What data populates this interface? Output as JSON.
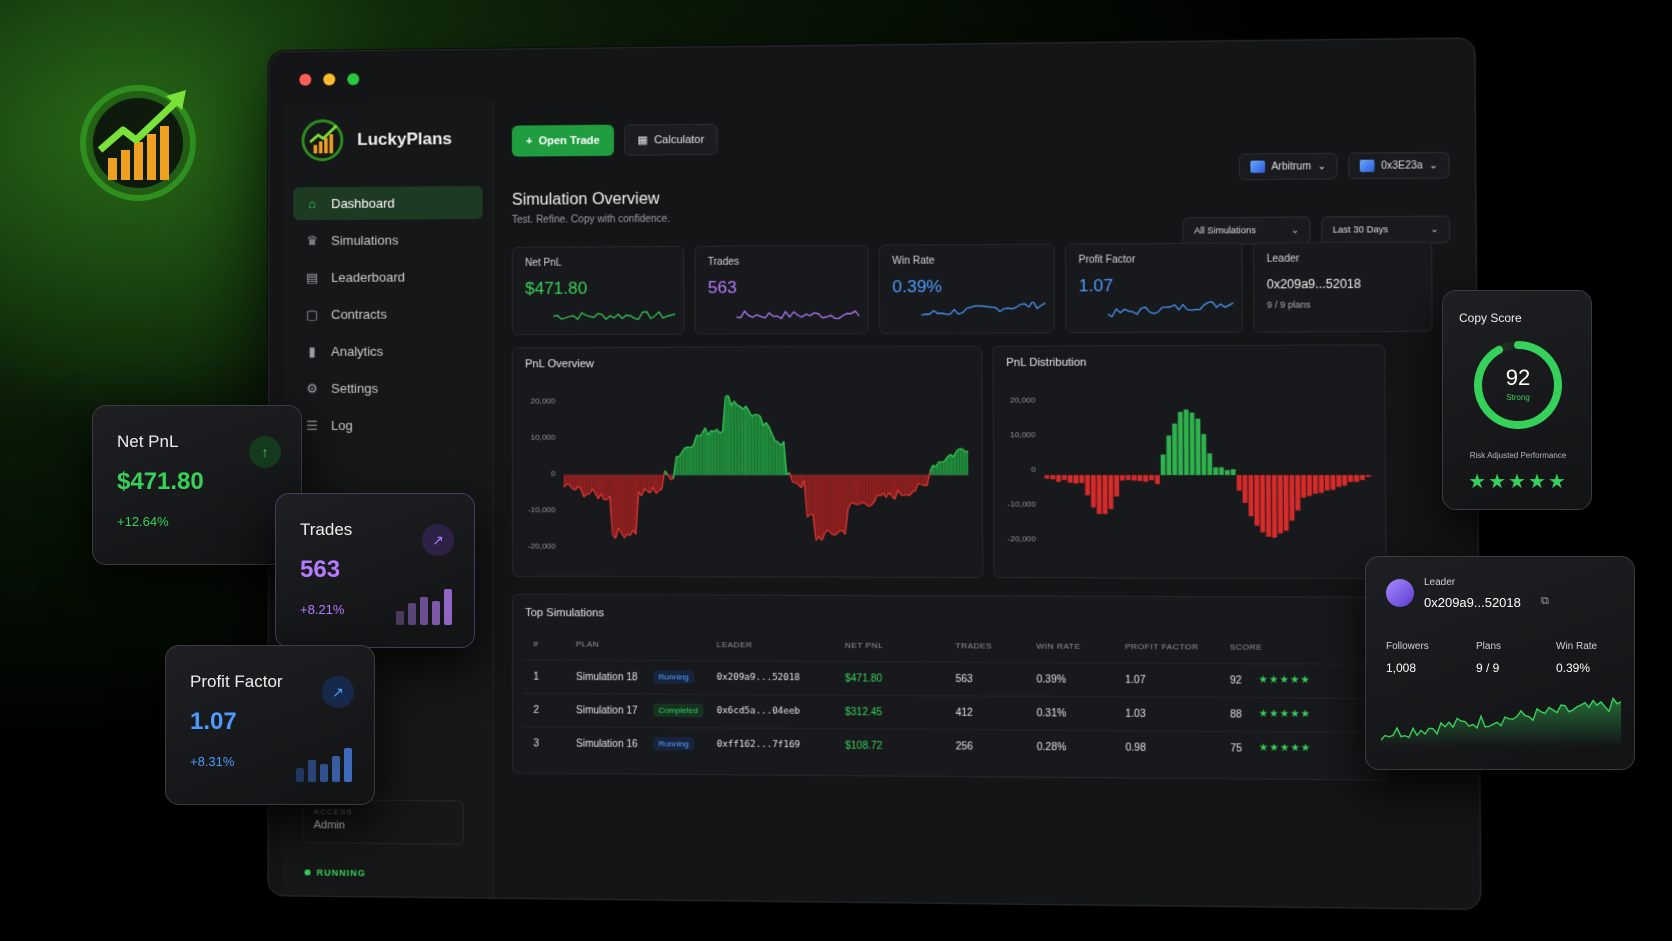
{
  "window": {
    "brand": "LuckyPlans"
  },
  "sidebar": {
    "items": [
      {
        "label": "Dashboard",
        "icon": "home-icon",
        "active": true
      },
      {
        "label": "Simulations",
        "icon": "crown-icon"
      },
      {
        "label": "Leaderboard",
        "icon": "clipboard-icon"
      },
      {
        "label": "Contracts",
        "icon": "document-icon"
      },
      {
        "label": "Analytics",
        "icon": "bar-chart-icon"
      },
      {
        "label": "Settings",
        "icon": "gear-icon"
      },
      {
        "label": "Log",
        "icon": "log-icon"
      }
    ],
    "access_label": "ACCESS",
    "access_value": "Admin",
    "status": "RUNNING"
  },
  "toolbar": {
    "open_trade": "Open Trade",
    "calculator": "Calculator",
    "network": "Arbitrum",
    "wallet": "0x3E23a"
  },
  "overview": {
    "title": "Simulation Overview",
    "subtitle": "Test. Refine. Copy with confidence.",
    "filter_sims": "All Simulations",
    "filter_range": "Last 30 Days"
  },
  "stats": {
    "net_pnl": {
      "label": "Net PnL",
      "value": "$471.80"
    },
    "trades": {
      "label": "Trades",
      "value": "563"
    },
    "win_rate": {
      "label": "Win Rate",
      "value": "0.39%"
    },
    "profit_factor": {
      "label": "Profit Factor",
      "value": "1.07"
    },
    "leader": {
      "label": "Leader",
      "value": "0x209a9...52018",
      "plans": "9 / 9 plans"
    }
  },
  "pnl_overview": {
    "title": "PnL Overview",
    "yticks": [
      "20,000",
      "10,000",
      "0",
      "-10,000",
      "-20,000"
    ]
  },
  "pnl_distribution": {
    "title": "PnL Distribution",
    "yticks": [
      "20,000",
      "10,000",
      "0",
      "-10,000",
      "-20,000"
    ]
  },
  "table": {
    "title": "Top Simulations",
    "headers": [
      "#",
      "PLAN",
      "LEADER",
      "NET PNL",
      "TRADES",
      "WIN RATE",
      "PROFIT FACTOR",
      "SCORE"
    ],
    "rows": [
      {
        "n": "1",
        "plan": "Simulation 18",
        "status": "Running",
        "leader": "0x209a9...52018",
        "pnl": "$471.80",
        "trades": "563",
        "win": "0.39%",
        "pf": "1.07",
        "score": "92"
      },
      {
        "n": "2",
        "plan": "Simulation 17",
        "status": "Completed",
        "leader": "0x6cd5a...04eeb",
        "pnl": "$312.45",
        "trades": "412",
        "win": "0.31%",
        "pf": "1.03",
        "score": "88"
      },
      {
        "n": "3",
        "plan": "Simulation 16",
        "status": "Running",
        "leader": "0xff162...7f169",
        "pnl": "$108.72",
        "trades": "256",
        "win": "0.28%",
        "pf": "0.98",
        "score": "75"
      }
    ],
    "stars": "★★★★★"
  },
  "floating": {
    "net_pnl": {
      "title": "Net PnL",
      "value": "$471.80",
      "change": "+12.64%"
    },
    "trades": {
      "title": "Trades",
      "value": "563",
      "change": "+8.21%"
    },
    "profit_factor": {
      "title": "Profit Factor",
      "value": "1.07",
      "change": "+8.31%"
    },
    "copy_score": {
      "title": "Copy Score",
      "value": "92",
      "label": "Strong",
      "caption": "Risk Adjusted Performance",
      "stars": "★★★★★",
      "fraction": 0.92
    },
    "leader": {
      "title": "Leader",
      "address": "0x209a9...52018",
      "followers_label": "Followers",
      "followers": "1,008",
      "plans_label": "Plans",
      "plans": "9 / 9",
      "win_label": "Win Rate",
      "win": "0.39%"
    }
  },
  "colors": {
    "green": "#36d15a",
    "red": "#e53935",
    "purple": "#b57bff",
    "blue": "#4b9bff"
  }
}
